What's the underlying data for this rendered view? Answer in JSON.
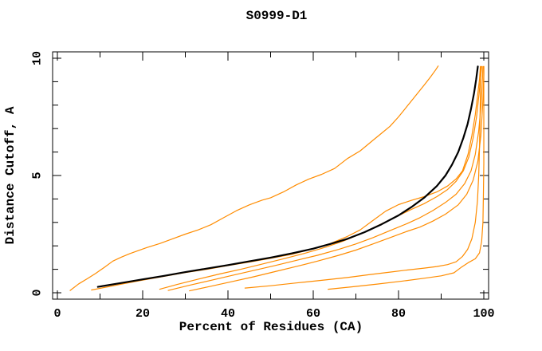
{
  "page": {
    "background": "#ffffff",
    "plot_frame_color": "#000000"
  },
  "chart_data": {
    "type": "line",
    "title": "S0999-D1",
    "xlabel": "Percent of Residues (CA)",
    "ylabel": "Distance Cutoff, A",
    "xlim": [
      0,
      100
    ],
    "ylim": [
      0,
      10
    ],
    "x_ticks": [
      0,
      20,
      40,
      60,
      80,
      100
    ],
    "x_minor_step": 10,
    "y_ticks": [
      0,
      5,
      10
    ],
    "y_minor_step": 1,
    "grid": false,
    "legend_position": "none",
    "frame": "box-with-inward-ticks",
    "colors": {
      "highlight_curve": "#000000",
      "model_curves": "#ff8c00"
    },
    "series": [
      {
        "name": "orange-curve-steep",
        "color": "#ff8c00",
        "width": 1.2,
        "points": [
          [
            3,
            0.1
          ],
          [
            5,
            0.38
          ],
          [
            7,
            0.6
          ],
          [
            9,
            0.83
          ],
          [
            11,
            1.08
          ],
          [
            13,
            1.35
          ],
          [
            15,
            1.52
          ],
          [
            17,
            1.67
          ],
          [
            19,
            1.8
          ],
          [
            21,
            1.93
          ],
          [
            24,
            2.1
          ],
          [
            27,
            2.3
          ],
          [
            30,
            2.5
          ],
          [
            33,
            2.68
          ],
          [
            36,
            2.9
          ],
          [
            39,
            3.2
          ],
          [
            42,
            3.5
          ],
          [
            45,
            3.75
          ],
          [
            48,
            3.95
          ],
          [
            50,
            4.05
          ],
          [
            53,
            4.3
          ],
          [
            56,
            4.6
          ],
          [
            59,
            4.85
          ],
          [
            62,
            5.05
          ],
          [
            65,
            5.3
          ],
          [
            68,
            5.72
          ],
          [
            71,
            6.05
          ],
          [
            74,
            6.5
          ],
          [
            76,
            6.8
          ],
          [
            78,
            7.1
          ],
          [
            80,
            7.5
          ],
          [
            82,
            7.95
          ],
          [
            84,
            8.4
          ],
          [
            86,
            8.85
          ],
          [
            87.5,
            9.2
          ],
          [
            88.7,
            9.5
          ],
          [
            89.3,
            9.67
          ]
        ]
      },
      {
        "name": "orange-curve-2",
        "color": "#ff8c00",
        "width": 1.2,
        "points": [
          [
            8,
            0.12
          ],
          [
            12,
            0.26
          ],
          [
            16,
            0.4
          ],
          [
            20,
            0.54
          ],
          [
            25,
            0.7
          ],
          [
            30,
            0.86
          ],
          [
            35,
            1.0
          ],
          [
            40,
            1.16
          ],
          [
            45,
            1.31
          ],
          [
            50,
            1.47
          ],
          [
            55,
            1.64
          ],
          [
            60,
            1.88
          ],
          [
            64,
            2.1
          ],
          [
            68,
            2.4
          ],
          [
            71,
            2.68
          ],
          [
            74,
            3.08
          ],
          [
            77,
            3.48
          ],
          [
            80,
            3.76
          ],
          [
            83,
            3.94
          ],
          [
            86,
            4.1
          ],
          [
            89,
            4.3
          ],
          [
            91.5,
            4.55
          ],
          [
            93.5,
            4.85
          ],
          [
            95,
            5.2
          ],
          [
            96.3,
            5.9
          ],
          [
            97.2,
            6.7
          ],
          [
            98,
            7.6
          ],
          [
            98.6,
            8.5
          ],
          [
            99,
            9.1
          ],
          [
            99.2,
            9.65
          ]
        ]
      },
      {
        "name": "orange-curve-3",
        "color": "#ff8c00",
        "width": 1.2,
        "points": [
          [
            24,
            0.15
          ],
          [
            28,
            0.35
          ],
          [
            33,
            0.58
          ],
          [
            38,
            0.8
          ],
          [
            43,
            1.0
          ],
          [
            48,
            1.22
          ],
          [
            53,
            1.45
          ],
          [
            58,
            1.68
          ],
          [
            63,
            1.95
          ],
          [
            67,
            2.2
          ],
          [
            71,
            2.5
          ],
          [
            75,
            2.85
          ],
          [
            79,
            3.2
          ],
          [
            83,
            3.55
          ],
          [
            86,
            3.8
          ],
          [
            89,
            4.1
          ],
          [
            91.5,
            4.4
          ],
          [
            93.5,
            4.75
          ],
          [
            95.2,
            5.2
          ],
          [
            96.5,
            5.8
          ],
          [
            97.5,
            6.6
          ],
          [
            98.3,
            7.5
          ],
          [
            98.9,
            8.5
          ],
          [
            99.3,
            9.3
          ],
          [
            99.5,
            9.65
          ]
        ]
      },
      {
        "name": "orange-curve-4",
        "color": "#ff8c00",
        "width": 1.2,
        "points": [
          [
            26,
            0.1
          ],
          [
            31,
            0.32
          ],
          [
            36,
            0.53
          ],
          [
            41,
            0.74
          ],
          [
            46,
            0.95
          ],
          [
            51,
            1.16
          ],
          [
            56,
            1.38
          ],
          [
            61,
            1.6
          ],
          [
            66,
            1.85
          ],
          [
            70,
            2.08
          ],
          [
            74,
            2.35
          ],
          [
            78,
            2.65
          ],
          [
            82,
            2.95
          ],
          [
            85,
            3.2
          ],
          [
            88,
            3.5
          ],
          [
            91,
            3.85
          ],
          [
            93.5,
            4.2
          ],
          [
            95.5,
            4.65
          ],
          [
            97,
            5.2
          ],
          [
            98,
            5.9
          ],
          [
            98.8,
            6.9
          ],
          [
            99.4,
            8.1
          ],
          [
            99.7,
            9.2
          ],
          [
            99.8,
            9.65
          ]
        ]
      },
      {
        "name": "orange-curve-5",
        "color": "#ff8c00",
        "width": 1.2,
        "points": [
          [
            31,
            0.08
          ],
          [
            36,
            0.28
          ],
          [
            41,
            0.48
          ],
          [
            46,
            0.68
          ],
          [
            51,
            0.9
          ],
          [
            56,
            1.12
          ],
          [
            61,
            1.35
          ],
          [
            66,
            1.6
          ],
          [
            70,
            1.82
          ],
          [
            74,
            2.08
          ],
          [
            78,
            2.35
          ],
          [
            82,
            2.62
          ],
          [
            85,
            2.8
          ],
          [
            88,
            3.05
          ],
          [
            91,
            3.35
          ],
          [
            94,
            3.75
          ],
          [
            96,
            4.2
          ],
          [
            97.5,
            4.8
          ],
          [
            98.6,
            5.6
          ],
          [
            99.3,
            6.7
          ],
          [
            99.8,
            8.2
          ],
          [
            100,
            9.3
          ],
          [
            100,
            9.65
          ]
        ]
      },
      {
        "name": "orange-curve-flat-mid",
        "color": "#ff8c00",
        "width": 1.2,
        "points": [
          [
            44,
            0.2
          ],
          [
            50,
            0.3
          ],
          [
            56,
            0.42
          ],
          [
            62,
            0.53
          ],
          [
            68,
            0.65
          ],
          [
            73,
            0.77
          ],
          [
            78,
            0.88
          ],
          [
            82,
            0.97
          ],
          [
            86,
            1.05
          ],
          [
            89,
            1.12
          ],
          [
            91.5,
            1.2
          ],
          [
            93.5,
            1.32
          ],
          [
            95,
            1.55
          ],
          [
            96.2,
            1.85
          ],
          [
            97.2,
            2.3
          ],
          [
            98,
            3.0
          ],
          [
            98.5,
            3.9
          ],
          [
            98.8,
            5.0
          ],
          [
            99,
            6.2
          ],
          [
            99.1,
            7.4
          ],
          [
            99.2,
            8.5
          ],
          [
            99.3,
            9.65
          ]
        ]
      },
      {
        "name": "orange-curve-flat-low",
        "color": "#ff8c00",
        "width": 1.2,
        "points": [
          [
            63.5,
            0.15
          ],
          [
            69,
            0.25
          ],
          [
            75,
            0.37
          ],
          [
            81,
            0.5
          ],
          [
            86,
            0.62
          ],
          [
            90,
            0.72
          ],
          [
            93,
            0.85
          ],
          [
            94.8,
            1.1
          ],
          [
            96.5,
            1.3
          ],
          [
            98,
            1.45
          ],
          [
            99,
            1.7
          ],
          [
            99.5,
            2.2
          ],
          [
            99.8,
            3.0
          ],
          [
            99.9,
            4.2
          ],
          [
            100,
            5.5
          ],
          [
            100,
            7.0
          ],
          [
            100,
            8.3
          ],
          [
            100,
            9.65
          ]
        ]
      },
      {
        "name": "black-highlight-curve",
        "color": "#000000",
        "width": 2.2,
        "points": [
          [
            9.5,
            0.25
          ],
          [
            15,
            0.42
          ],
          [
            20,
            0.57
          ],
          [
            25,
            0.72
          ],
          [
            30,
            0.88
          ],
          [
            35,
            1.03
          ],
          [
            40,
            1.18
          ],
          [
            45,
            1.34
          ],
          [
            50,
            1.5
          ],
          [
            55,
            1.68
          ],
          [
            60,
            1.88
          ],
          [
            64,
            2.08
          ],
          [
            68,
            2.3
          ],
          [
            72,
            2.58
          ],
          [
            76,
            2.92
          ],
          [
            80,
            3.3
          ],
          [
            83,
            3.65
          ],
          [
            86,
            4.05
          ],
          [
            89,
            4.55
          ],
          [
            91,
            5.0
          ],
          [
            92.5,
            5.45
          ],
          [
            94,
            6.0
          ],
          [
            95.2,
            6.6
          ],
          [
            96.2,
            7.2
          ],
          [
            97,
            7.85
          ],
          [
            97.7,
            8.5
          ],
          [
            98.2,
            9.1
          ],
          [
            98.6,
            9.65
          ]
        ]
      }
    ]
  }
}
